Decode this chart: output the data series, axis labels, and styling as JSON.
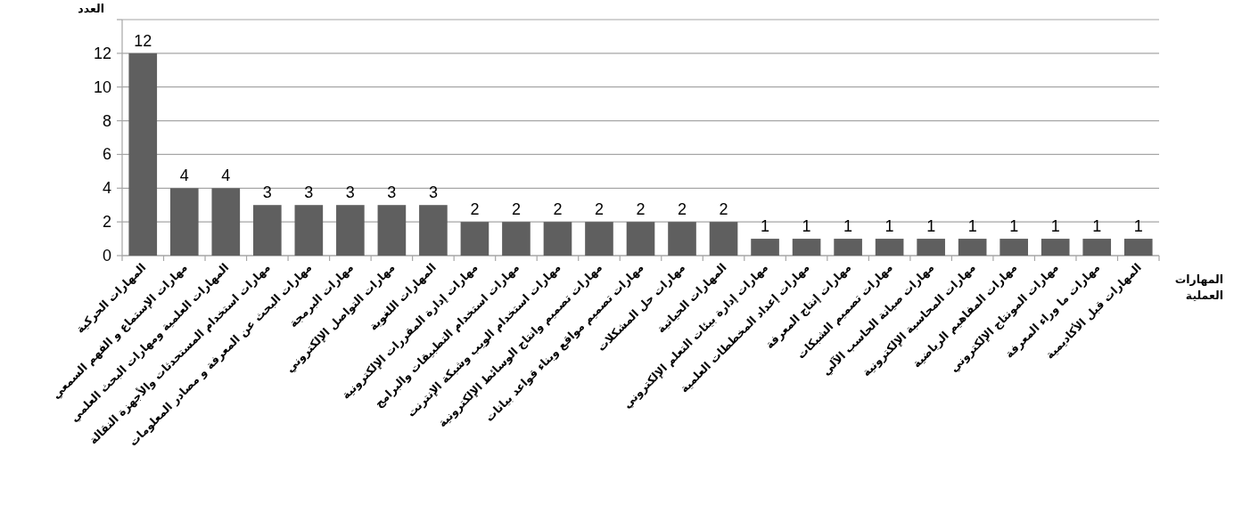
{
  "chart_data": {
    "type": "bar",
    "ylabel": "العدد",
    "xlabel": "المهارات العملية",
    "categories": [
      "المهارات الحركية",
      "مهارات الإستماع و الفهم السمعي",
      "المهارات العلمية ومهارات البحث العلمي",
      "مهارات استخدام المستحدثات والأجهزة النقالة",
      "مهارات البحث عن المعرفة و مصادر المعلومات",
      "مهارات البرمجة",
      "مهارات التواصل الإلكتروني",
      "المهارات اللغوية",
      "مهارات إدارة المقررات الإلكترونية",
      "مهارات استخدام التطبيقات والبرامج",
      "مهارات استخدام الويب وشبكة الإنترنت",
      "مهارات تصميم وانتاج الوسائط الإلكترونية",
      "مهارات تصميم مواقع وبناء قواعد بيانات",
      "مهارات حل المشكلات",
      "المهارات الحياتية",
      "مهارات إدارة بيئات التعلم الإلكتروني",
      "مهارات إعداد المخططات العلمية",
      "مهارات إنتاج المعرفة",
      "مهارات تصميم الشبكات",
      "مهارات صيانة الحاسب الآلي",
      "مهارات المحاسبة الإلكترونية",
      "مهارات المفاهيم الرياضية",
      "مهارات المونتاج الإلكتروني",
      "مهارات ما وراء المعرفة",
      "المهارات قبل الأكاديمية"
    ],
    "values": [
      12,
      4,
      4,
      3,
      3,
      3,
      3,
      3,
      2,
      2,
      2,
      2,
      2,
      2,
      2,
      1,
      1,
      1,
      1,
      1,
      1,
      1,
      1,
      1,
      1
    ],
    "color": "#5f5f5f",
    "ylim": [
      0,
      14
    ],
    "yticks": [
      0,
      2,
      4,
      6,
      8,
      10,
      12,
      {
        "value": 14,
        "label": null
      }
    ],
    "grid": "y",
    "data_labels": true
  }
}
